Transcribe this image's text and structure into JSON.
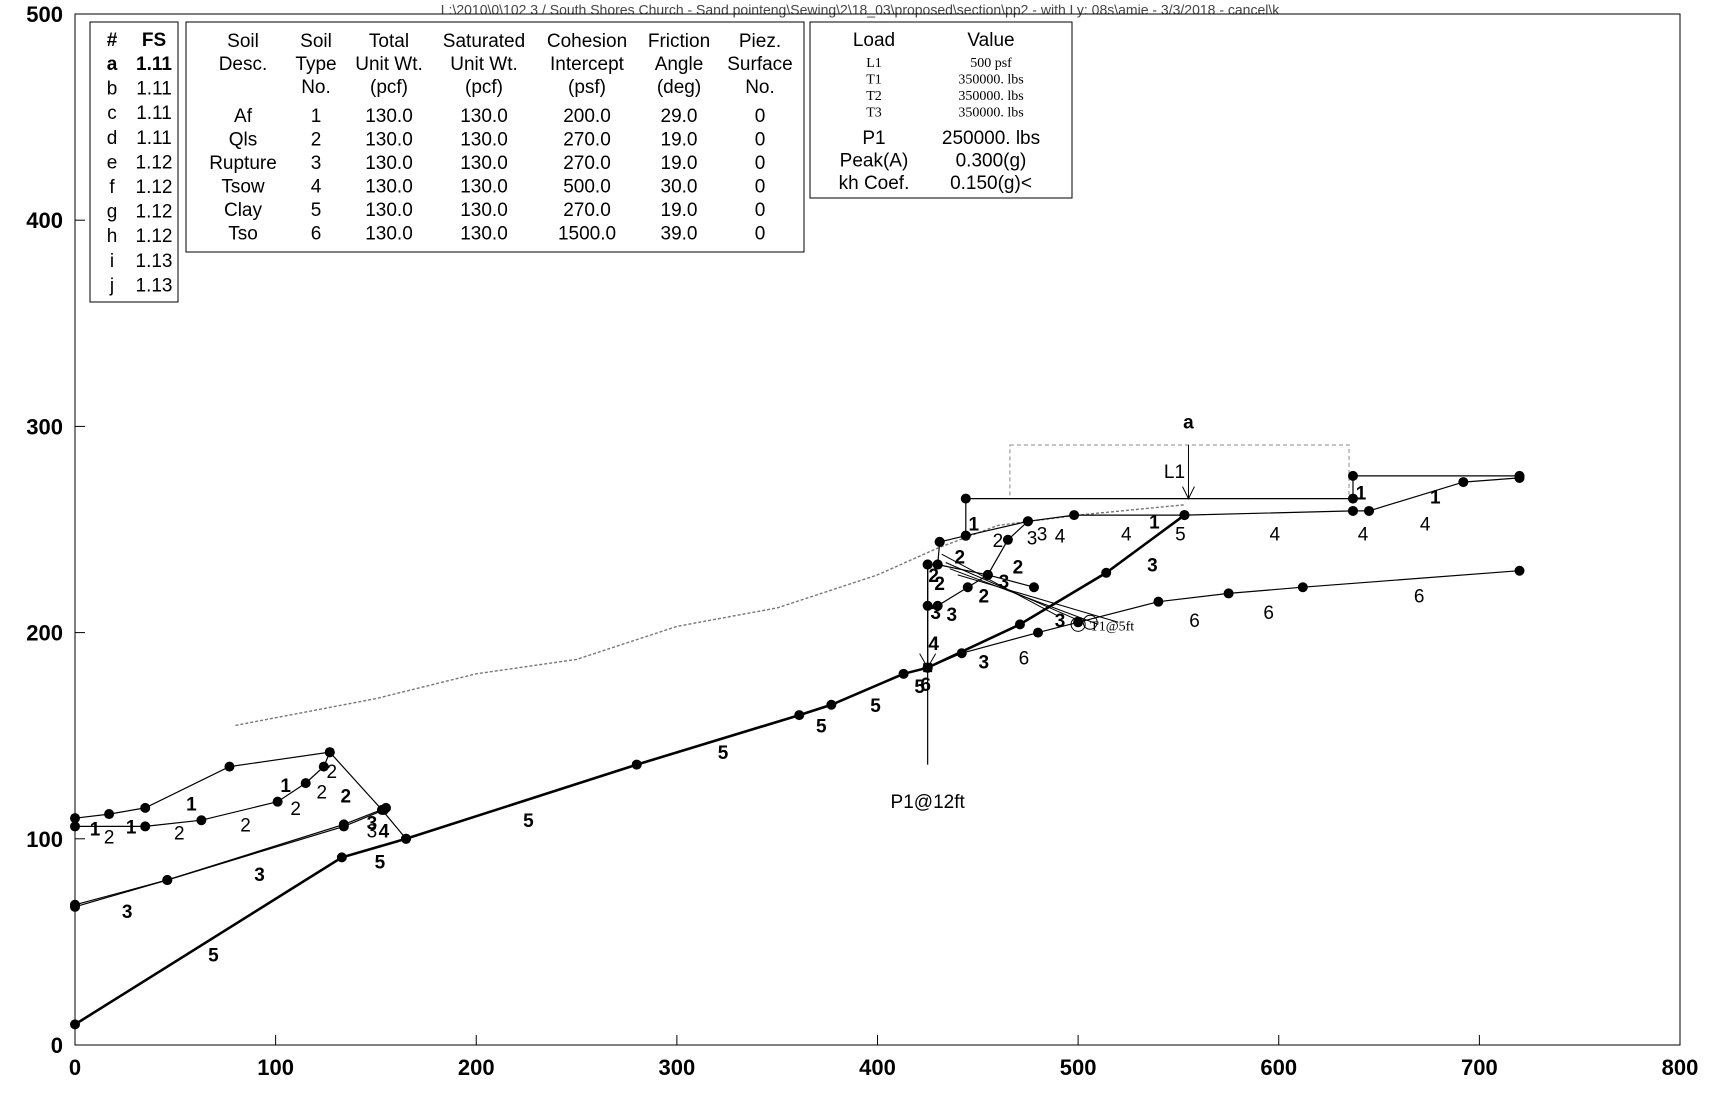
{
  "header": {
    "title": "L:\\2010\\0\\102 3 / South Shores Church - Sand pointeng\\Sewing\\2\\18_03\\proposed\\section\\pp2 - with Ly: 08s\\amie - 3/3/2018 - cancel\\k"
  },
  "chart_data": {
    "type": "scatter",
    "xlim": [
      0,
      800
    ],
    "ylim": [
      0,
      500
    ],
    "x_ticks": [
      "0",
      "100",
      "200",
      "300",
      "400",
      "500",
      "600",
      "700",
      "800"
    ],
    "y_ticks": [
      "0",
      "100",
      "200",
      "300",
      "400",
      "500"
    ],
    "fs_table": {
      "headers": [
        "#",
        "FS"
      ],
      "rows": [
        [
          "a",
          "1.11"
        ],
        [
          "b",
          "1.11"
        ],
        [
          "c",
          "1.11"
        ],
        [
          "d",
          "1.11"
        ],
        [
          "e",
          "1.12"
        ],
        [
          "f",
          "1.12"
        ],
        [
          "g",
          "1.12"
        ],
        [
          "h",
          "1.12"
        ],
        [
          "i",
          "1.13"
        ],
        [
          "j",
          "1.13"
        ]
      ]
    },
    "soil_table": {
      "headers": [
        [
          "Soil",
          "Desc."
        ],
        [
          "Soil",
          "Type",
          "No."
        ],
        [
          "Total",
          "Unit Wt.",
          "(pcf)"
        ],
        [
          "Saturated",
          "Unit Wt.",
          "(pcf)"
        ],
        [
          "Cohesion",
          "Intercept",
          "(psf)"
        ],
        [
          "Friction",
          "Angle",
          "(deg)"
        ],
        [
          "Piez.",
          "Surface",
          "No."
        ]
      ],
      "rows": [
        [
          "Af",
          "1",
          "130.0",
          "130.0",
          "200.0",
          "29.0",
          "0"
        ],
        [
          "Qls",
          "2",
          "130.0",
          "130.0",
          "270.0",
          "19.0",
          "0"
        ],
        [
          "Rupture",
          "3",
          "130.0",
          "130.0",
          "270.0",
          "19.0",
          "0"
        ],
        [
          "Tsow",
          "4",
          "130.0",
          "130.0",
          "500.0",
          "30.0",
          "0"
        ],
        [
          "Clay",
          "5",
          "130.0",
          "130.0",
          "270.0",
          "19.0",
          "0"
        ],
        [
          "Tso",
          "6",
          "130.0",
          "130.0",
          "1500.0",
          "39.0",
          "0"
        ]
      ]
    },
    "load_table": {
      "headers": [
        "Load",
        "Value"
      ],
      "small_rows": [
        [
          "L1",
          "500 psf"
        ],
        [
          "T1",
          "350000. lbs"
        ],
        [
          "T2",
          "350000. lbs"
        ],
        [
          "T3",
          "350000. lbs"
        ]
      ],
      "rows": [
        [
          "P1",
          "250000. lbs"
        ],
        [
          "Peak(A)",
          "0.300(g)"
        ],
        [
          "kh Coef.",
          "0.150(g)<"
        ]
      ]
    },
    "boundaries": [
      {
        "style": "thin",
        "points": [
          [
            0,
            110
          ],
          [
            17,
            112
          ],
          [
            35,
            115
          ],
          [
            77,
            135
          ],
          [
            127,
            142
          ],
          [
            153,
            114
          ],
          [
            165,
            100
          ]
        ]
      },
      {
        "style": "thin",
        "points": [
          [
            0,
            106
          ],
          [
            35,
            106
          ],
          [
            63,
            109
          ],
          [
            101,
            118
          ],
          [
            115,
            127
          ],
          [
            124,
            135
          ],
          [
            127,
            142
          ]
        ]
      },
      {
        "style": "thin",
        "points": [
          [
            0,
            67
          ],
          [
            46,
            80
          ],
          [
            134,
            106
          ],
          [
            154,
            114
          ]
        ]
      },
      {
        "style": "thin",
        "points": [
          [
            0,
            68
          ],
          [
            46,
            80
          ],
          [
            134,
            107
          ],
          [
            155,
            115
          ]
        ]
      },
      {
        "style": "thick",
        "points": [
          [
            0,
            10
          ],
          [
            133,
            91
          ],
          [
            165,
            100
          ],
          [
            280,
            136
          ],
          [
            361,
            160
          ],
          [
            377,
            165
          ],
          [
            413,
            180
          ],
          [
            425,
            183
          ],
          [
            471,
            204
          ],
          [
            514,
            229
          ],
          [
            553,
            257
          ]
        ]
      },
      {
        "style": "thin",
        "points": [
          [
            425,
            183
          ],
          [
            442,
            190
          ],
          [
            480,
            200
          ],
          [
            500,
            205
          ],
          [
            540,
            215
          ],
          [
            575,
            219
          ],
          [
            612,
            222
          ],
          [
            720,
            230
          ]
        ]
      },
      {
        "style": "thin",
        "points": [
          [
            425,
            233
          ],
          [
            430,
            233
          ],
          [
            455,
            228
          ],
          [
            478,
            222
          ]
        ]
      },
      {
        "style": "thin",
        "points": [
          [
            431,
            244
          ],
          [
            444,
            247
          ],
          [
            475,
            254
          ],
          [
            498,
            257
          ],
          [
            553,
            257
          ],
          [
            637,
            259
          ],
          [
            645,
            259
          ],
          [
            692,
            273
          ],
          [
            720,
            275
          ]
        ]
      },
      {
        "style": "thin",
        "points": [
          [
            444,
            247
          ],
          [
            444,
            265
          ],
          [
            637,
            265
          ],
          [
            637,
            276
          ],
          [
            720,
            276
          ]
        ]
      },
      {
        "style": "thin",
        "points": [
          [
            475,
            254
          ],
          [
            465,
            245
          ],
          [
            455,
            228
          ],
          [
            445,
            222
          ],
          [
            430,
            213
          ],
          [
            425,
            213
          ]
        ]
      },
      {
        "style": "thin",
        "points": [
          [
            425,
            233
          ],
          [
            425,
            183
          ]
        ]
      },
      {
        "style": "thin",
        "points": [
          [
            430,
            233
          ],
          [
            431,
            244
          ]
        ]
      }
    ],
    "dotted_surface": [
      [
        80,
        155
      ],
      [
        150,
        168
      ],
      [
        200,
        180
      ],
      [
        250,
        187
      ],
      [
        300,
        203
      ],
      [
        350,
        212
      ],
      [
        400,
        228
      ],
      [
        430,
        241
      ],
      [
        460,
        252
      ],
      [
        500,
        257
      ],
      [
        553,
        262
      ]
    ],
    "loads_box": [
      [
        466,
        291
      ],
      [
        635,
        291
      ],
      [
        635,
        265
      ],
      [
        466,
        265
      ]
    ],
    "anchors": [
      [
        [
          432,
          238
        ],
        [
          490,
          208
        ]
      ],
      [
        [
          434,
          234
        ],
        [
          500,
          206
        ]
      ],
      [
        [
          436,
          231
        ],
        [
          510,
          204
        ]
      ],
      [
        [
          440,
          228
        ],
        [
          520,
          205
        ]
      ]
    ],
    "zone_labels": [
      {
        "text": "1",
        "x": 10,
        "y": 105,
        "bold": true
      },
      {
        "text": "2",
        "x": 17,
        "y": 101,
        "bold": false
      },
      {
        "text": "1",
        "x": 28,
        "y": 106,
        "bold": true
      },
      {
        "text": "2",
        "x": 52,
        "y": 103,
        "bold": false
      },
      {
        "text": "1",
        "x": 58,
        "y": 117,
        "bold": true
      },
      {
        "text": "2",
        "x": 85,
        "y": 107,
        "bold": false
      },
      {
        "text": "1",
        "x": 105,
        "y": 126,
        "bold": true
      },
      {
        "text": "2",
        "x": 110,
        "y": 115,
        "bold": false
      },
      {
        "text": "2",
        "x": 123,
        "y": 123,
        "bold": false
      },
      {
        "text": "2",
        "x": 128,
        "y": 133,
        "bold": false
      },
      {
        "text": "2",
        "x": 135,
        "y": 121,
        "bold": true
      },
      {
        "text": "3",
        "x": 148,
        "y": 108,
        "bold": true
      },
      {
        "text": "3",
        "x": 148,
        "y": 104,
        "bold": false
      },
      {
        "text": "4",
        "x": 154,
        "y": 104,
        "bold": true
      },
      {
        "text": "3",
        "x": 92,
        "y": 83,
        "bold": true
      },
      {
        "text": "3",
        "x": 26,
        "y": 65,
        "bold": true
      },
      {
        "text": "5",
        "x": 152,
        "y": 89,
        "bold": true
      },
      {
        "text": "5",
        "x": 226,
        "y": 109,
        "bold": true
      },
      {
        "text": "5",
        "x": 69,
        "y": 44,
        "bold": true
      },
      {
        "text": "5",
        "x": 323,
        "y": 142,
        "bold": true
      },
      {
        "text": "5",
        "x": 372,
        "y": 155,
        "bold": true
      },
      {
        "text": "5",
        "x": 399,
        "y": 165,
        "bold": true
      },
      {
        "text": "5",
        "x": 421,
        "y": 174,
        "bold": true
      },
      {
        "text": "6",
        "x": 424,
        "y": 175,
        "bold": true
      },
      {
        "text": "4",
        "x": 428,
        "y": 195,
        "bold": true
      },
      {
        "text": "3",
        "x": 429,
        "y": 210,
        "bold": true
      },
      {
        "text": "3",
        "x": 437,
        "y": 209,
        "bold": true
      },
      {
        "text": "2",
        "x": 428,
        "y": 228,
        "bold": true
      },
      {
        "text": "2",
        "x": 431,
        "y": 224,
        "bold": true
      },
      {
        "text": "2",
        "x": 441,
        "y": 237,
        "bold": true
      },
      {
        "text": "2",
        "x": 453,
        "y": 218,
        "bold": true
      },
      {
        "text": "2",
        "x": 470,
        "y": 232,
        "bold": true
      },
      {
        "text": "3",
        "x": 463,
        "y": 225,
        "bold": true
      },
      {
        "text": "2",
        "x": 460,
        "y": 245,
        "bold": false
      },
      {
        "text": "3",
        "x": 477,
        "y": 246,
        "bold": false
      },
      {
        "text": "3",
        "x": 482,
        "y": 248,
        "bold": false
      },
      {
        "text": "4",
        "x": 491,
        "y": 247,
        "bold": false
      },
      {
        "text": "4",
        "x": 524,
        "y": 248,
        "bold": false
      },
      {
        "text": "1",
        "x": 448,
        "y": 253,
        "bold": true
      },
      {
        "text": "1",
        "x": 538,
        "y": 254,
        "bold": true
      },
      {
        "text": "5",
        "x": 551,
        "y": 248,
        "bold": false
      },
      {
        "text": "3",
        "x": 491,
        "y": 206,
        "bold": true
      },
      {
        "text": "3",
        "x": 537,
        "y": 233,
        "bold": true
      },
      {
        "text": "3",
        "x": 453,
        "y": 186,
        "bold": true
      },
      {
        "text": "6",
        "x": 473,
        "y": 188,
        "bold": false
      },
      {
        "text": "6",
        "x": 558,
        "y": 206,
        "bold": false
      },
      {
        "text": "6",
        "x": 595,
        "y": 210,
        "bold": false
      },
      {
        "text": "6",
        "x": 670,
        "y": 218,
        "bold": false
      },
      {
        "text": "4",
        "x": 598,
        "y": 248,
        "bold": false
      },
      {
        "text": "4",
        "x": 642,
        "y": 248,
        "bold": false
      },
      {
        "text": "4",
        "x": 673,
        "y": 253,
        "bold": false
      },
      {
        "text": "1",
        "x": 641,
        "y": 268,
        "bold": true
      },
      {
        "text": "1",
        "x": 678,
        "y": 266,
        "bold": true
      }
    ],
    "annotations": {
      "p1_label": "P1@12ft",
      "t1_label": "T1@5ft",
      "l1_label": "L1",
      "a_label": "a"
    }
  }
}
